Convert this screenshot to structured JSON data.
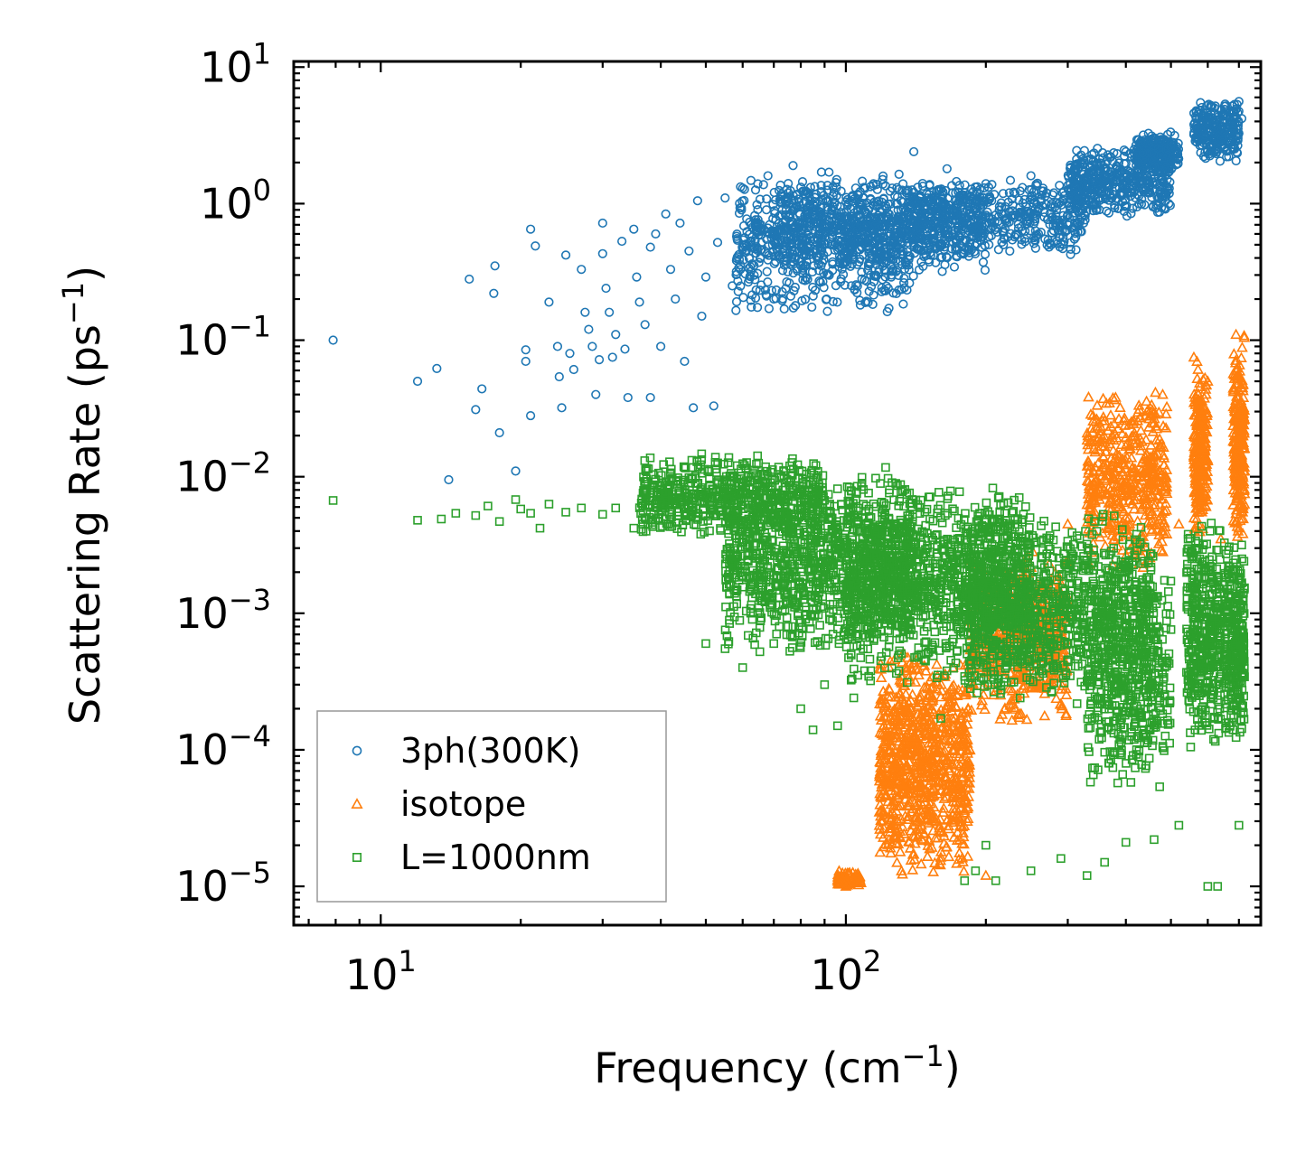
{
  "chart_data": {
    "type": "scatter",
    "xscale": "log",
    "yscale": "log",
    "xlim": [
      6.5,
      780
    ],
    "ylim": [
      5.2e-06,
      11
    ],
    "xlabel": "Frequency (cm",
    "xlabel_sup": "−1",
    "xlabel_end": ")",
    "ylabel": "Scattering Rate (ps",
    "ylabel_sup": "−1",
    "ylabel_end": ")",
    "x_ticks": [
      {
        "base": "10",
        "exp": "1",
        "value": 10
      },
      {
        "base": "10",
        "exp": "2",
        "value": 100
      }
    ],
    "y_ticks": [
      {
        "base": "10",
        "exp": "1",
        "value": 10
      },
      {
        "base": "10",
        "exp": "0",
        "value": 1
      },
      {
        "base": "10",
        "exp": "−1",
        "value": 0.1
      },
      {
        "base": "10",
        "exp": "−2",
        "value": 0.01
      },
      {
        "base": "10",
        "exp": "−3",
        "value": 0.001
      },
      {
        "base": "10",
        "exp": "−4",
        "value": 0.0001
      },
      {
        "base": "10",
        "exp": "−5",
        "value": 1e-05
      }
    ],
    "legend_position": "lower-left",
    "series": [
      {
        "name": "3ph(300K)",
        "marker": "circle",
        "color": "#1f77b4",
        "points": [
          [
            7.9,
            0.1
          ],
          [
            12,
            0.05
          ],
          [
            13.2,
            0.062
          ],
          [
            14,
            0.0095
          ],
          [
            15.5,
            0.28
          ],
          [
            16,
            0.031
          ],
          [
            16.5,
            0.044
          ],
          [
            17.5,
            0.22
          ],
          [
            17.6,
            0.35
          ],
          [
            18,
            0.021
          ],
          [
            19.5,
            0.011
          ],
          [
            20.5,
            0.085
          ],
          [
            20.5,
            0.07
          ],
          [
            21,
            0.028
          ],
          [
            21,
            0.65
          ],
          [
            21.5,
            0.49
          ],
          [
            23,
            0.19
          ],
          [
            24,
            0.09
          ],
          [
            24.2,
            0.054
          ],
          [
            24.5,
            0.032
          ],
          [
            25,
            0.42
          ],
          [
            25.5,
            0.08
          ],
          [
            26,
            0.061
          ],
          [
            27,
            0.33
          ],
          [
            27.5,
            0.16
          ],
          [
            28,
            0.12
          ],
          [
            28.5,
            0.09
          ],
          [
            29,
            0.04
          ],
          [
            29.5,
            0.072
          ],
          [
            30,
            0.43
          ],
          [
            30,
            0.72
          ],
          [
            30.5,
            0.24
          ],
          [
            31,
            0.16
          ],
          [
            31.5,
            0.075
          ],
          [
            32,
            0.11
          ],
          [
            33,
            0.53
          ],
          [
            33.5,
            0.086
          ],
          [
            34,
            0.038
          ],
          [
            35,
            0.65
          ],
          [
            35.5,
            0.29
          ],
          [
            36,
            0.19
          ],
          [
            37,
            0.13
          ],
          [
            38,
            0.038
          ],
          [
            38,
            0.48
          ],
          [
            39,
            0.6
          ],
          [
            40,
            0.09
          ],
          [
            41,
            0.84
          ],
          [
            42,
            0.33
          ],
          [
            43,
            0.2
          ],
          [
            44,
            0.72
          ],
          [
            45,
            0.07
          ],
          [
            46,
            0.45
          ],
          [
            47,
            0.032
          ],
          [
            48,
            1.05
          ],
          [
            49,
            0.15
          ],
          [
            50,
            0.29
          ],
          [
            52,
            0.033
          ],
          [
            53,
            0.52
          ],
          [
            55,
            1.1
          ],
          [
            57,
            0.25
          ],
          [
            60,
            1.3
          ],
          [
            62,
            0.4
          ],
          [
            64,
            0.7
          ],
          [
            68,
            1.6
          ],
          [
            70,
            0.2
          ],
          [
            73,
            0.9
          ],
          [
            77,
            1.9
          ],
          [
            80,
            0.35
          ],
          [
            83,
            1.2
          ],
          [
            88,
            0.6
          ],
          [
            92,
            1.7
          ],
          [
            98,
            0.8
          ],
          [
            105,
            1.3
          ],
          [
            112,
            0.9
          ],
          [
            120,
            1.5
          ],
          [
            135,
            1.2
          ],
          [
            140,
            2.4
          ],
          [
            150,
            1.1
          ],
          [
            165,
            1.8
          ],
          [
            180,
            1.2
          ],
          [
            200,
            1.4
          ],
          [
            220,
            0.95
          ],
          [
            250,
            1.6
          ],
          [
            280,
            1.2
          ],
          [
            320,
            2.0
          ],
          [
            360,
            1.8
          ],
          [
            400,
            2.4
          ],
          [
            420,
            1.5
          ],
          [
            460,
            2.8
          ],
          [
            500,
            2.6
          ],
          [
            560,
            3.2
          ],
          [
            620,
            3.6
          ],
          [
            700,
            5.6
          ],
          [
            710,
            4.2
          ]
        ],
        "clouds": [
          {
            "x_range": [
              58,
              140
            ],
            "y_range": [
              0.15,
              1.8
            ],
            "count": 700
          },
          {
            "x_range": [
              70,
              200
            ],
            "y_range": [
              0.3,
              1.5
            ],
            "count": 600
          },
          {
            "x_range": [
              140,
              330
            ],
            "y_range": [
              0.4,
              1.6
            ],
            "count": 500
          },
          {
            "x_range": [
              300,
              500
            ],
            "y_range": [
              0.8,
              2.6
            ],
            "count": 450
          },
          {
            "x_range": [
              420,
              520
            ],
            "y_range": [
              1.6,
              3.4
            ],
            "count": 250
          },
          {
            "x_range": [
              560,
              700
            ],
            "y_range": [
              2.0,
              5.8
            ],
            "count": 250
          }
        ]
      },
      {
        "name": "isotope",
        "marker": "triangle",
        "color": "#ff7f0e",
        "points": [
          [
            100,
            1e-05
          ],
          [
            120,
            3e-05
          ],
          [
            125,
            5e-05
          ],
          [
            130,
            8e-05
          ],
          [
            135,
            0.00013
          ],
          [
            150,
            0.00025
          ],
          [
            170,
            0.0004
          ],
          [
            200,
            1.2e-05
          ],
          [
            300,
            0.0045
          ],
          [
            350,
            0.009
          ],
          [
            400,
            0.005
          ],
          [
            450,
            0.03
          ],
          [
            480,
            0.04
          ],
          [
            520,
            0.0045
          ],
          [
            560,
            0.075
          ],
          [
            600,
            0.05
          ],
          [
            640,
            0.0035
          ],
          [
            690,
            0.11
          ],
          [
            720,
            0.0075
          ]
        ],
        "clouds": [
          {
            "x_range": [
              96,
              108
            ],
            "y_range": [
              1e-05,
              1.3e-05
            ],
            "count": 60
          },
          {
            "x_range": [
              118,
              185
            ],
            "y_range": [
              1e-05,
              0.0006
            ],
            "count": 900
          },
          {
            "x_range": [
              185,
              300
            ],
            "y_range": [
              0.00015,
              0.003
            ],
            "count": 500
          },
          {
            "x_range": [
              330,
              490
            ],
            "y_range": [
              0.002,
              0.045
            ],
            "count": 500
          },
          {
            "x_range": [
              560,
              600
            ],
            "y_range": [
              0.003,
              0.075
            ],
            "count": 250
          },
          {
            "x_range": [
              680,
              720
            ],
            "y_range": [
              0.003,
              0.11
            ],
            "count": 250
          }
        ]
      },
      {
        "name": "L=1000nm",
        "marker": "square",
        "color": "#2ca02c",
        "points": [
          [
            7.9,
            0.0067
          ],
          [
            12,
            0.0048
          ],
          [
            13.5,
            0.0049
          ],
          [
            14.5,
            0.0054
          ],
          [
            16,
            0.0052
          ],
          [
            17,
            0.0061
          ],
          [
            18,
            0.0047
          ],
          [
            19.5,
            0.0068
          ],
          [
            20,
            0.0058
          ],
          [
            21,
            0.0054
          ],
          [
            22,
            0.0042
          ],
          [
            23,
            0.0063
          ],
          [
            25,
            0.0055
          ],
          [
            27,
            0.0059
          ],
          [
            30,
            0.0053
          ],
          [
            32,
            0.0059
          ],
          [
            35,
            0.0042
          ],
          [
            40,
            0.0065
          ],
          [
            45,
            0.0058
          ],
          [
            50,
            0.0006
          ],
          [
            55,
            0.00055
          ],
          [
            60,
            0.0004
          ],
          [
            65,
            0.0011
          ],
          [
            70,
            0.0006
          ],
          [
            80,
            0.0002
          ],
          [
            85,
            0.00014
          ],
          [
            90,
            0.0003
          ],
          [
            96,
            0.00015
          ],
          [
            104,
            0.00024
          ],
          [
            113,
            0.00032
          ],
          [
            140,
            0.0012
          ],
          [
            160,
            0.00017
          ],
          [
            180,
            1.1e-05
          ],
          [
            190,
            1.3e-05
          ],
          [
            200,
            2e-05
          ],
          [
            210,
            1.1e-05
          ],
          [
            250,
            1.3e-05
          ],
          [
            290,
            1.6e-05
          ],
          [
            330,
            1.2e-05
          ],
          [
            360,
            1.5e-05
          ],
          [
            400,
            2.1e-05
          ],
          [
            460,
            2.2e-05
          ],
          [
            520,
            2.8e-05
          ],
          [
            600,
            1e-05
          ],
          [
            630,
            1e-05
          ],
          [
            700,
            2.8e-05
          ]
        ],
        "clouds": [
          {
            "x_range": [
              36,
              90
            ],
            "y_range": [
              0.0035,
              0.015
            ],
            "count": 600
          },
          {
            "x_range": [
              55,
              140
            ],
            "y_range": [
              0.0005,
              0.012
            ],
            "count": 1100
          },
          {
            "x_range": [
              100,
              250
            ],
            "y_range": [
              0.0003,
              0.009
            ],
            "count": 1100
          },
          {
            "x_range": [
              180,
              460
            ],
            "y_range": [
              0.0002,
              0.006
            ],
            "count": 1100
          },
          {
            "x_range": [
              330,
              500
            ],
            "y_range": [
              5e-05,
              0.002
            ],
            "count": 400
          },
          {
            "x_range": [
              540,
              640
            ],
            "y_range": [
              0.0001,
              0.005
            ],
            "count": 400
          },
          {
            "x_range": [
              650,
              720
            ],
            "y_range": [
              0.0001,
              0.004
            ],
            "count": 300
          }
        ]
      }
    ]
  }
}
